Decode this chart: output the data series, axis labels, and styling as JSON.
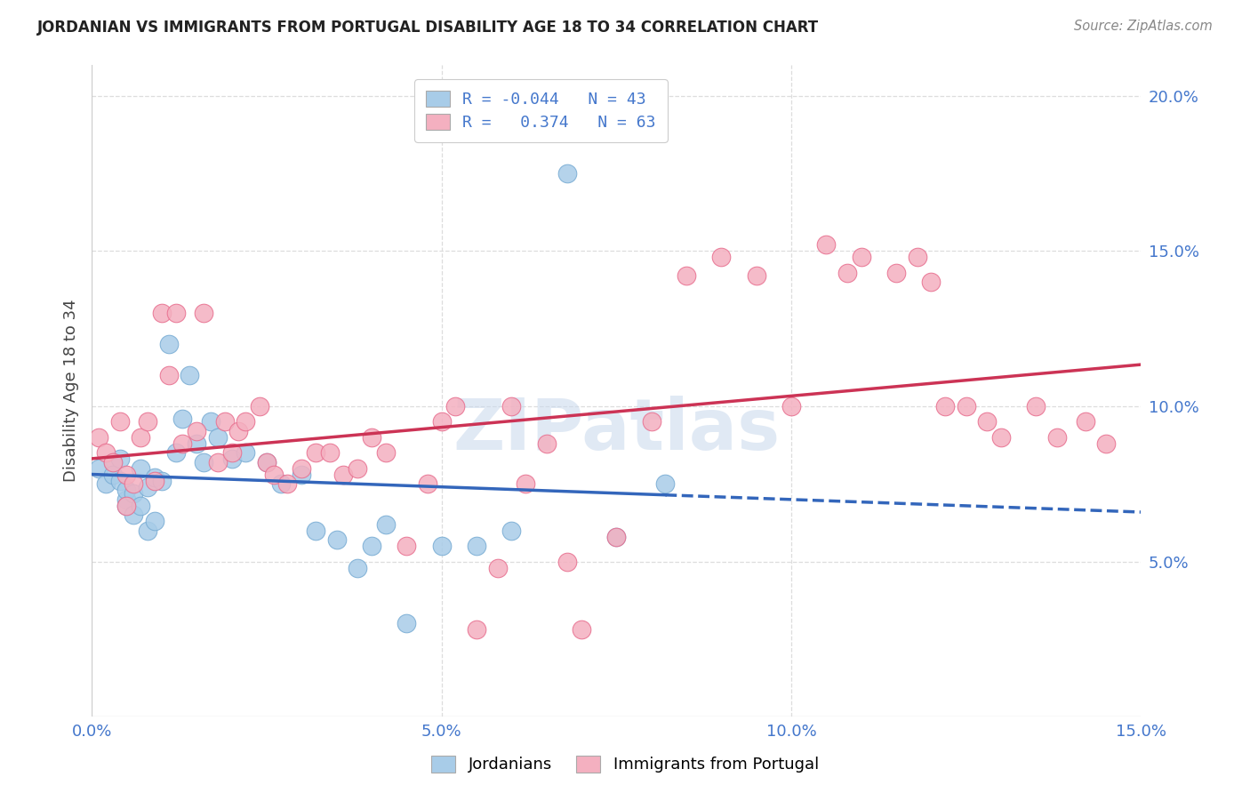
{
  "title": "JORDANIAN VS IMMIGRANTS FROM PORTUGAL DISABILITY AGE 18 TO 34 CORRELATION CHART",
  "source": "Source: ZipAtlas.com",
  "ylabel": "Disability Age 18 to 34",
  "xmin": 0.0,
  "xmax": 0.15,
  "ymin": 0.0,
  "ymax": 0.21,
  "blue_R": -0.044,
  "blue_N": 43,
  "pink_R": 0.374,
  "pink_N": 63,
  "blue_color": "#a8cce8",
  "blue_edge": "#7aadd4",
  "pink_color": "#f4b0c0",
  "pink_edge": "#e87090",
  "blue_line_color": "#3366bb",
  "pink_line_color": "#cc3355",
  "watermark": "ZIPatlas",
  "legend_label_blue": "Jordanians",
  "legend_label_pink": "Immigrants from Portugal",
  "xtick_vals": [
    0.0,
    0.05,
    0.1,
    0.15
  ],
  "xtick_labels": [
    "0.0%",
    "5.0%",
    "10.0%",
    "15.0%"
  ],
  "ytick_vals": [
    0.05,
    0.1,
    0.15,
    0.2
  ],
  "ytick_labels": [
    "5.0%",
    "10.0%",
    "15.0%",
    "20.0%"
  ],
  "grid_color": "#dddddd",
  "blue_x": [
    0.001,
    0.002,
    0.003,
    0.003,
    0.004,
    0.004,
    0.005,
    0.005,
    0.005,
    0.006,
    0.006,
    0.007,
    0.007,
    0.008,
    0.008,
    0.009,
    0.009,
    0.01,
    0.011,
    0.012,
    0.013,
    0.014,
    0.015,
    0.016,
    0.017,
    0.018,
    0.02,
    0.022,
    0.025,
    0.027,
    0.03,
    0.032,
    0.035,
    0.038,
    0.04,
    0.042,
    0.045,
    0.05,
    0.055,
    0.06,
    0.068,
    0.075,
    0.082
  ],
  "blue_y": [
    0.08,
    0.075,
    0.082,
    0.078,
    0.076,
    0.083,
    0.07,
    0.073,
    0.068,
    0.072,
    0.065,
    0.08,
    0.068,
    0.074,
    0.06,
    0.077,
    0.063,
    0.076,
    0.12,
    0.085,
    0.096,
    0.11,
    0.088,
    0.082,
    0.095,
    0.09,
    0.083,
    0.085,
    0.082,
    0.075,
    0.078,
    0.06,
    0.057,
    0.048,
    0.055,
    0.062,
    0.03,
    0.055,
    0.055,
    0.06,
    0.175,
    0.058,
    0.075
  ],
  "pink_x": [
    0.001,
    0.002,
    0.003,
    0.004,
    0.005,
    0.005,
    0.006,
    0.007,
    0.008,
    0.009,
    0.01,
    0.011,
    0.012,
    0.013,
    0.015,
    0.016,
    0.018,
    0.019,
    0.02,
    0.021,
    0.022,
    0.024,
    0.025,
    0.026,
    0.028,
    0.03,
    0.032,
    0.034,
    0.036,
    0.038,
    0.04,
    0.042,
    0.045,
    0.048,
    0.05,
    0.052,
    0.055,
    0.058,
    0.06,
    0.062,
    0.065,
    0.068,
    0.07,
    0.075,
    0.08,
    0.085,
    0.09,
    0.095,
    0.1,
    0.105,
    0.108,
    0.11,
    0.115,
    0.118,
    0.12,
    0.122,
    0.125,
    0.128,
    0.13,
    0.135,
    0.138,
    0.142,
    0.145
  ],
  "pink_y": [
    0.09,
    0.085,
    0.082,
    0.095,
    0.078,
    0.068,
    0.075,
    0.09,
    0.095,
    0.076,
    0.13,
    0.11,
    0.13,
    0.088,
    0.092,
    0.13,
    0.082,
    0.095,
    0.085,
    0.092,
    0.095,
    0.1,
    0.082,
    0.078,
    0.075,
    0.08,
    0.085,
    0.085,
    0.078,
    0.08,
    0.09,
    0.085,
    0.055,
    0.075,
    0.095,
    0.1,
    0.028,
    0.048,
    0.1,
    0.075,
    0.088,
    0.05,
    0.028,
    0.058,
    0.095,
    0.142,
    0.148,
    0.142,
    0.1,
    0.152,
    0.143,
    0.148,
    0.143,
    0.148,
    0.14,
    0.1,
    0.1,
    0.095,
    0.09,
    0.1,
    0.09,
    0.095,
    0.088
  ]
}
